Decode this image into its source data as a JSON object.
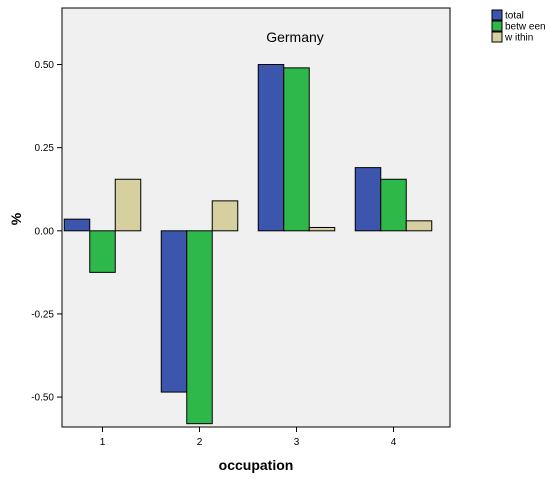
{
  "chart_data": {
    "type": "bar",
    "title": "Germany",
    "xlabel": "occupation",
    "ylabel": "%",
    "categories": [
      "1",
      "2",
      "3",
      "4"
    ],
    "ylim": [
      -0.59,
      0.67
    ],
    "yticks": [
      "0.50",
      "0.25",
      "0.00",
      "-0.25",
      "-0.50"
    ],
    "ytick_values": [
      0.5,
      0.25,
      0.0,
      -0.25,
      -0.5
    ],
    "series": [
      {
        "name": "total",
        "color": "#3d56ad",
        "values": [
          0.035,
          -0.485,
          0.5,
          0.19
        ]
      },
      {
        "name": "between",
        "color": "#2eb84a",
        "values": [
          -0.125,
          -0.58,
          0.49,
          0.155
        ]
      },
      {
        "name": "within",
        "color": "#d6d0a0",
        "values": [
          0.155,
          0.09,
          0.01,
          0.03
        ]
      }
    ],
    "legend_labels": [
      "total",
      "betw een",
      "w ithin"
    ],
    "legend_position": "top-right-outside",
    "plot_background": "#f0f0f0",
    "grid": false
  }
}
